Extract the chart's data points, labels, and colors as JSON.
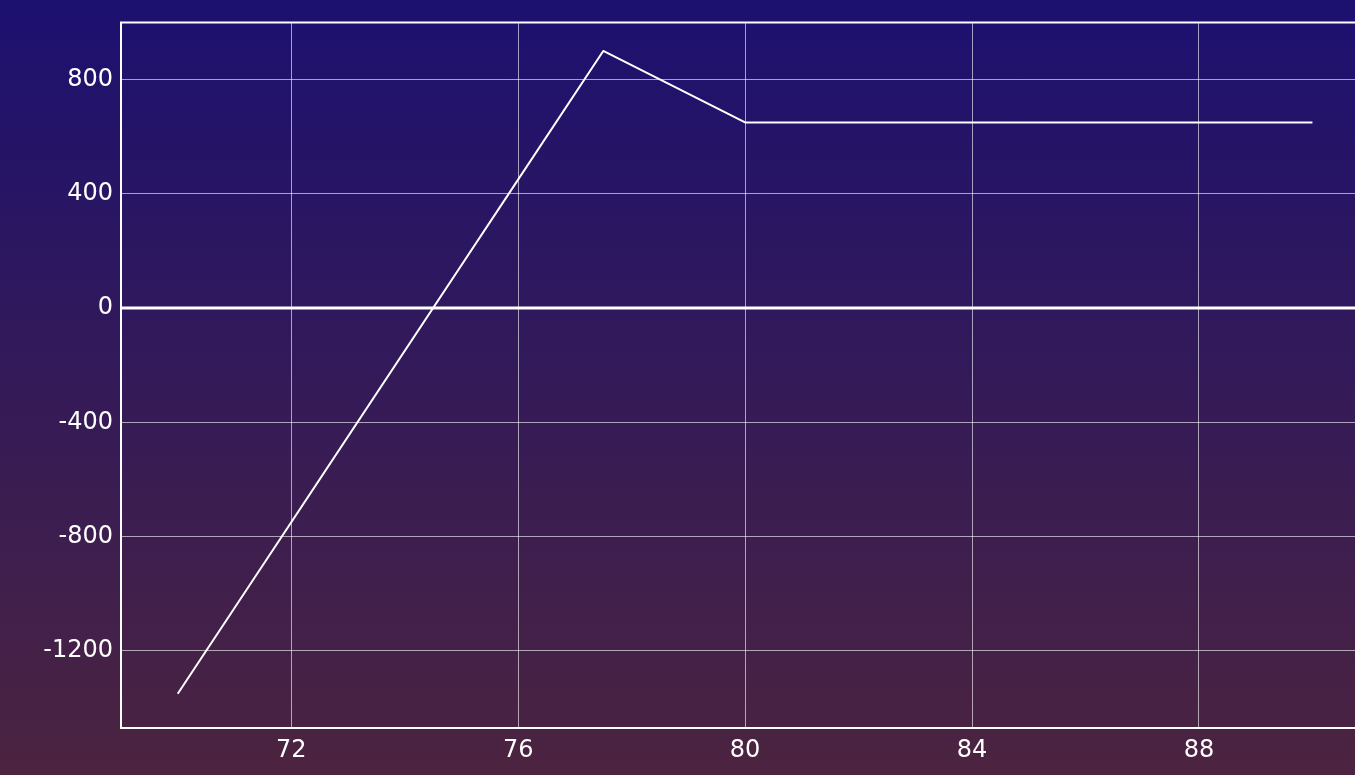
{
  "chart_data": {
    "type": "line",
    "x": [
      70,
      77.5,
      80,
      90
    ],
    "series": [
      {
        "color": "#ffffff",
        "values": [
          -1350,
          900,
          650,
          650
        ]
      }
    ],
    "xlim": [
      69,
      90.75
    ],
    "xticks": [
      72,
      76,
      80,
      84,
      88
    ],
    "ylim": [
      -1470,
      1000
    ],
    "yticks": [
      -1200,
      -800,
      -400,
      0,
      400,
      800
    ],
    "grid": true,
    "legend": false,
    "marker": "none",
    "line_style": "solid",
    "ref_lines": [
      {
        "axis": "y",
        "value": 0,
        "color": "#ffffff"
      }
    ]
  }
}
